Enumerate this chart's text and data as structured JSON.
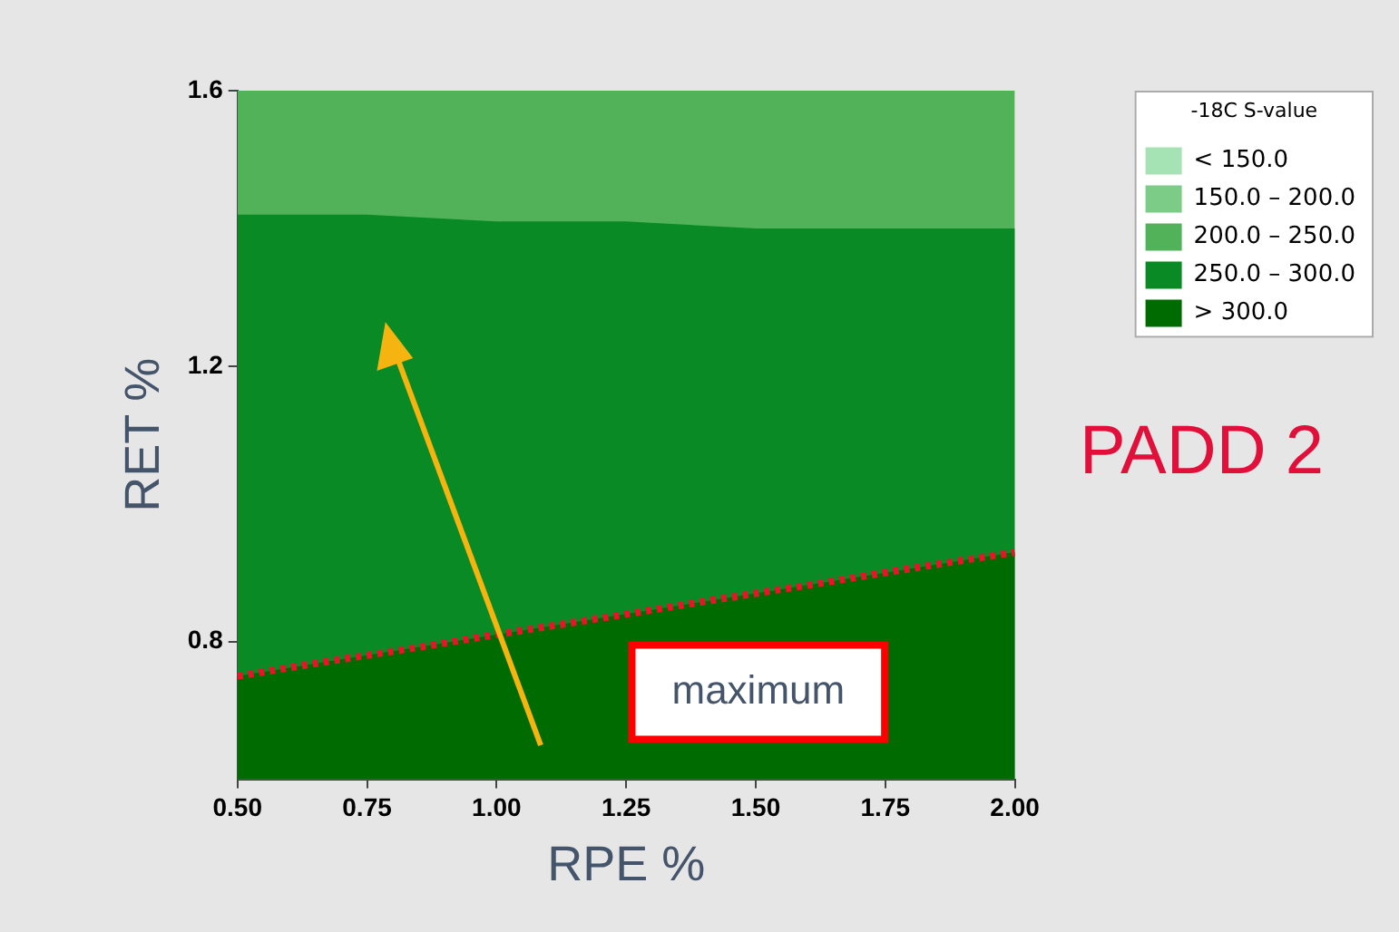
{
  "chart_data": {
    "type": "area",
    "xlabel": "RPE %",
    "ylabel": "RET %",
    "legend_title": "-18C S-value",
    "x": [
      0.5,
      0.75,
      1.0,
      1.25,
      1.5,
      1.75,
      2.0
    ],
    "xlim": [
      0.5,
      2.0
    ],
    "xticks": [
      {
        "value": 0.5,
        "label": "0.50"
      },
      {
        "value": 0.75,
        "label": "0.75"
      },
      {
        "value": 1.0,
        "label": "1.00"
      },
      {
        "value": 1.25,
        "label": "1.25"
      },
      {
        "value": 1.5,
        "label": "1.50"
      },
      {
        "value": 1.75,
        "label": "1.75"
      },
      {
        "value": 2.0,
        "label": "2.00"
      }
    ],
    "ylim": [
      0.6,
      1.6
    ],
    "yticks": [
      0.8,
      1.2,
      1.6
    ],
    "grid": false,
    "legend": "right",
    "series": [
      {
        "name": "< 150.0",
        "color": "#a6e3b4",
        "values": [
          null,
          null,
          null,
          null,
          null,
          null,
          null
        ]
      },
      {
        "name": "150.0 – 200.0",
        "color": "#7ccc88",
        "values": [
          null,
          null,
          null,
          null,
          null,
          null,
          null
        ]
      },
      {
        "name": "200.0 – 250.0",
        "color": "#52b25a",
        "values": [
          1.6,
          1.6,
          1.6,
          1.6,
          1.6,
          1.6,
          1.6
        ]
      },
      {
        "name": "250.0 – 300.0",
        "color": "#0a8a24",
        "values": [
          1.42,
          1.42,
          1.41,
          1.41,
          1.4,
          1.4,
          1.4
        ]
      },
      {
        "name": "> 300.0",
        "color": "#006b00",
        "values": [
          0.75,
          0.78,
          0.81,
          0.84,
          0.87,
          0.9,
          0.93
        ]
      },
      {
        "type": "line",
        "color": "#e8142a",
        "line_style": "dotted",
        "values": [
          0.75,
          0.78,
          0.81,
          0.84,
          0.87,
          0.9,
          0.93
        ]
      }
    ],
    "annotations": [
      "maximum",
      "PADD 2"
    ]
  }
}
